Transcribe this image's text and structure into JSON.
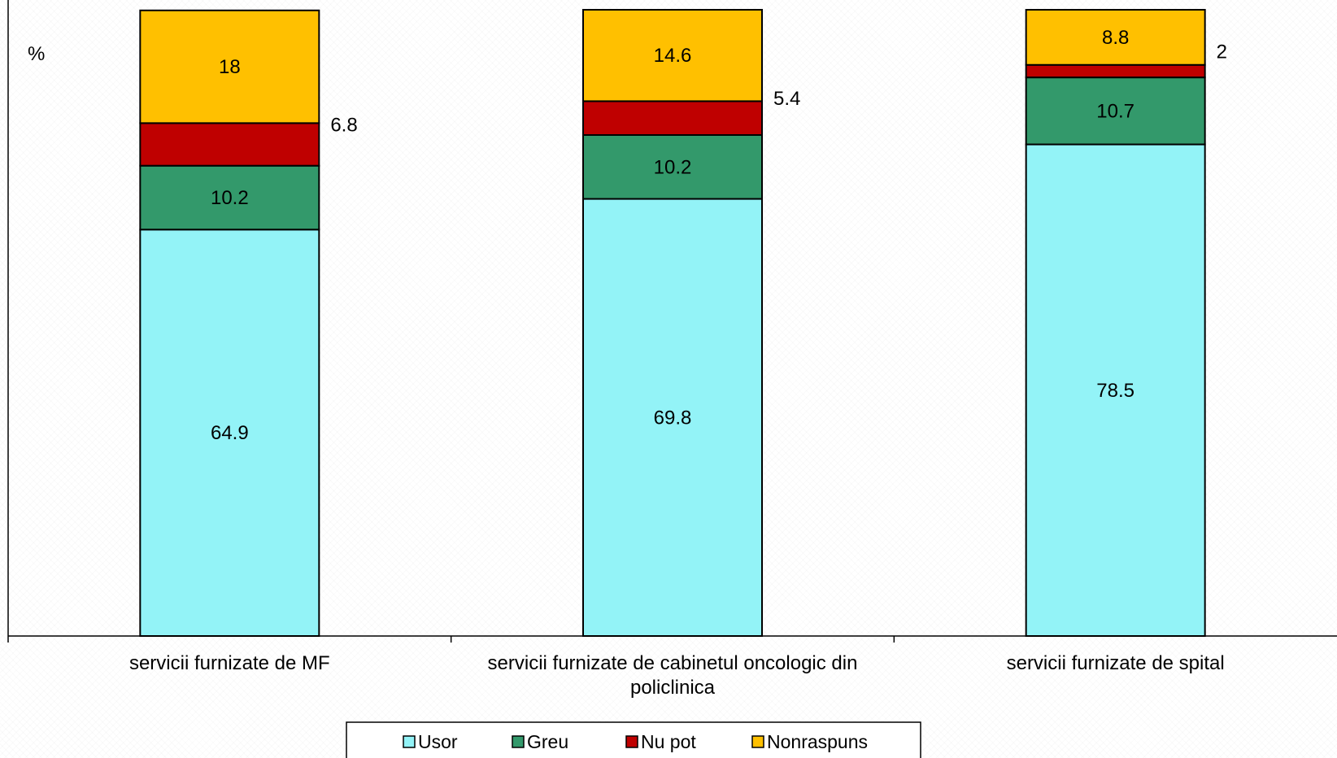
{
  "chart_data": {
    "type": "bar",
    "stacked": true,
    "ylabel": "%",
    "ylim": [
      0,
      100
    ],
    "grid": false,
    "legend_position": "bottom",
    "categories": [
      "servicii furnizate de MF",
      "servicii furnizate de cabinetul oncologic din policlinica",
      "servicii furnizate de spital"
    ],
    "series": [
      {
        "name": "Usor",
        "color": "#93f3f7",
        "values": [
          64.9,
          69.8,
          78.5
        ]
      },
      {
        "name": "Greu",
        "color": "#33996b",
        "values": [
          10.2,
          10.2,
          10.7
        ]
      },
      {
        "name": "Nu pot",
        "color": "#bf0000",
        "values": [
          6.8,
          5.4,
          2
        ]
      },
      {
        "name": "Nonraspuns",
        "color": "#ffc000",
        "values": [
          18,
          14.6,
          8.8
        ]
      }
    ]
  }
}
